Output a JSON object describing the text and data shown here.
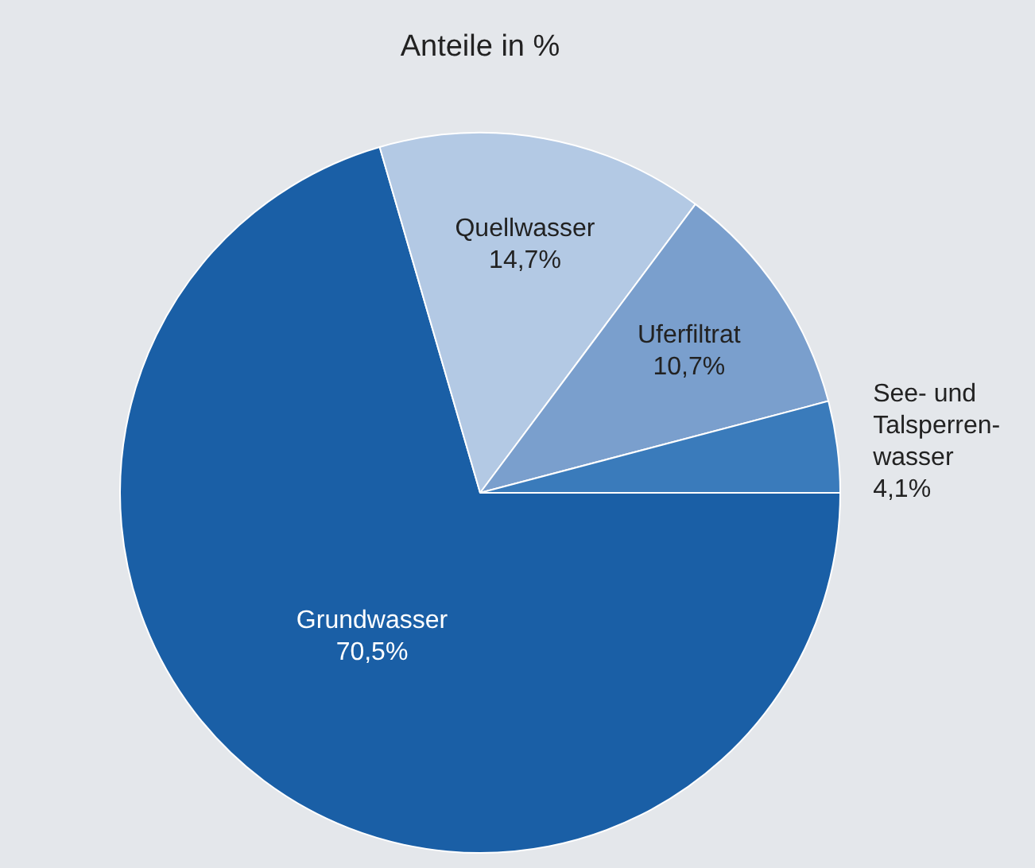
{
  "chart_data": {
    "type": "pie",
    "title": "Anteile in %",
    "categories": [
      "Grundwasser",
      "Quellwasser",
      "Uferfiltrat",
      "See- und Talsperren-wasser"
    ],
    "values": [
      70.5,
      14.7,
      10.7,
      4.1
    ],
    "value_labels": [
      "70,5%",
      "14,7%",
      "10,7%",
      "4,1%"
    ],
    "colors": [
      "#1a5fa6",
      "#b3c9e4",
      "#7a9fcd",
      "#3a7bbb"
    ],
    "legend": false
  }
}
